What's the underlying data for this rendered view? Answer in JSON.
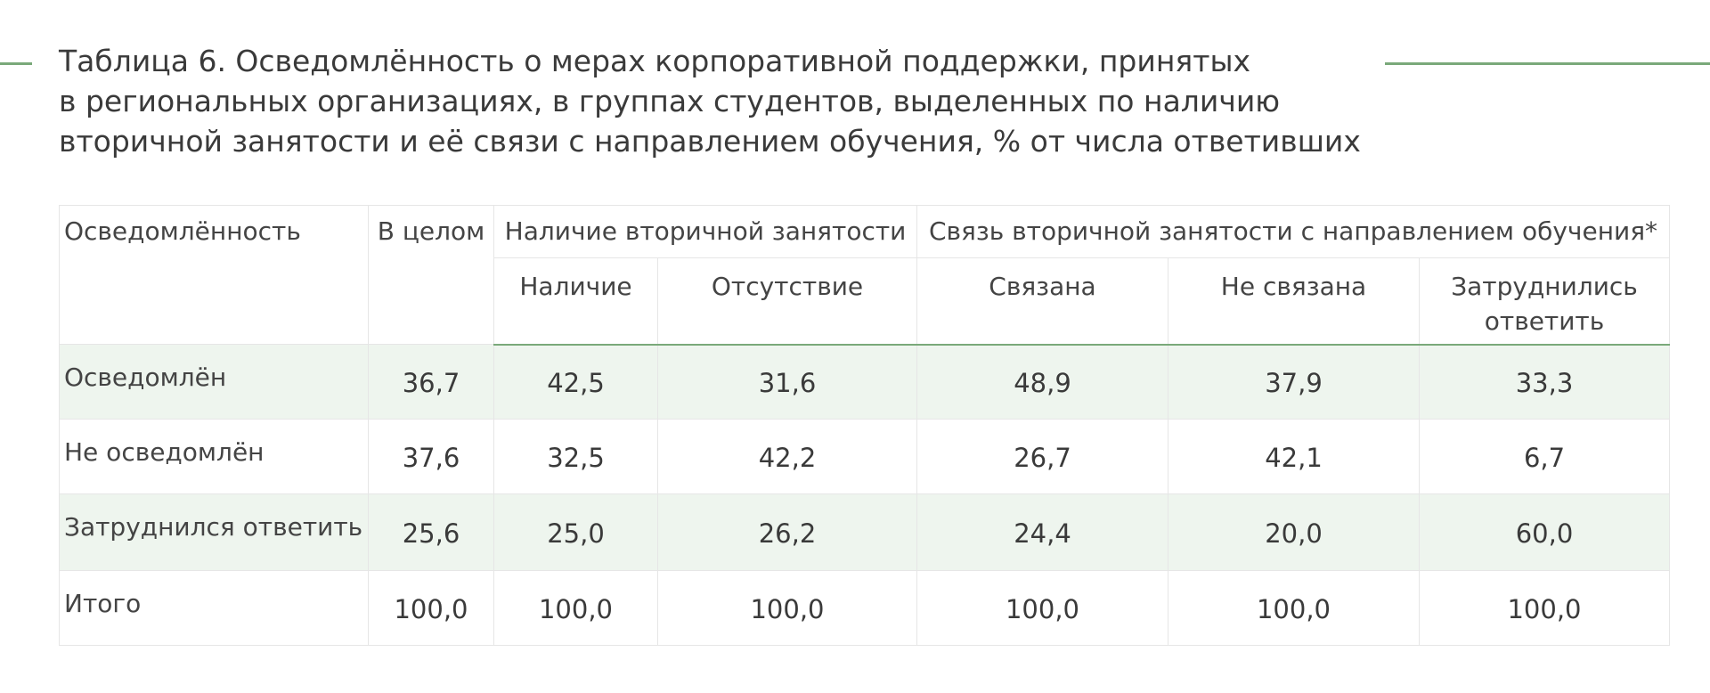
{
  "title_lines": [
    "Таблица 6. Осведомлённость о мерах корпоративной поддержки, принятых",
    "в региональных организациях, в группах студентов, выделенных по наличию",
    "вторичной занятости и её связи с направлением обучения, % от числа ответивших"
  ],
  "table": {
    "header_row1": {
      "awareness": "Осведомлённость",
      "total": "В целом",
      "secondary_employment": "Наличие вторичной занятости",
      "relation": "Связь вторичной занятости с направлением обучения*"
    },
    "header_row2": [
      "Наличие",
      "Отсутствие",
      "Связана",
      "Не связана",
      "Затруднились ответить"
    ],
    "rows": [
      {
        "label": "Осведомлён",
        "values": [
          "36,7",
          "42,5",
          "31,6",
          "48,9",
          "37,9",
          "33,3"
        ]
      },
      {
        "label": "Не осведомлён",
        "values": [
          "37,6",
          "32,5",
          "42,2",
          "26,7",
          "42,1",
          "6,7"
        ]
      },
      {
        "label": "Затруднился ответить",
        "values": [
          "25,6",
          "25,0",
          "26,2",
          "24,4",
          "20,0",
          "60,0"
        ]
      },
      {
        "label": "Итого",
        "values": [
          "100,0",
          "100,0",
          "100,0",
          "100,0",
          "100,0",
          "100,0"
        ]
      }
    ]
  },
  "colors": {
    "accent": "#7aa97a",
    "row_shade": "#eef5ee",
    "text": "#3a3a3a"
  }
}
